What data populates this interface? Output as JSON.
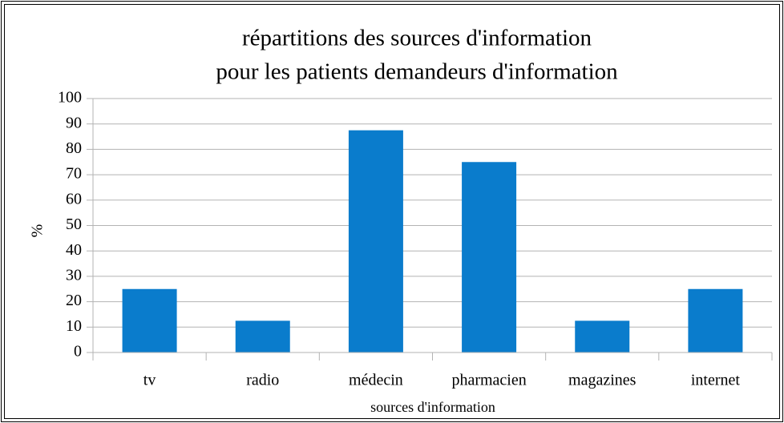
{
  "chart_data": {
    "type": "bar",
    "title": [
      "répartitions des sources d'information",
      "pour les patients demandeurs d'information"
    ],
    "x_label": "sources d'information",
    "y_label": "%",
    "categories": [
      "tv",
      "radio",
      "médecin",
      "pharmacien",
      "magazines",
      "internet"
    ],
    "values": [
      25,
      12.5,
      87.5,
      75,
      12.5,
      25
    ],
    "color": "#0a7ccc",
    "ylim": [
      0,
      100
    ],
    "yticks": [
      0,
      10,
      20,
      30,
      40,
      50,
      60,
      70,
      80,
      90,
      100
    ],
    "grid": true
  }
}
